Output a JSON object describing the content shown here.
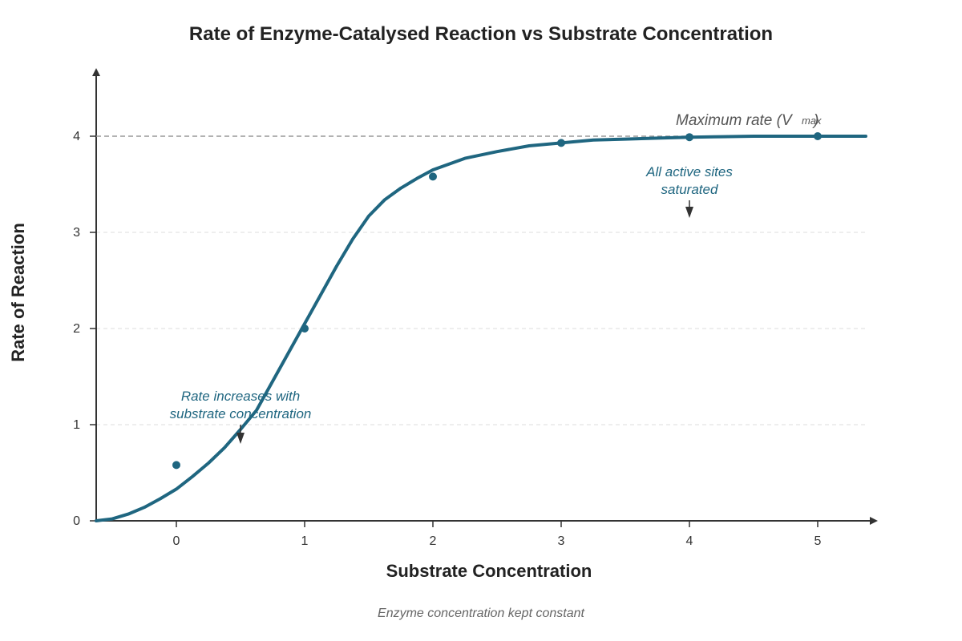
{
  "chart_data": {
    "type": "line",
    "title": "Rate of Enzyme-Catalysed Reaction vs Substrate Concentration",
    "xlabel": "Substrate Concentration",
    "ylabel": "Rate of Reaction",
    "xticks": [
      "0",
      "1",
      "2",
      "3",
      "4",
      "5"
    ],
    "yticks": [
      "0",
      "1",
      "2",
      "3",
      "4"
    ],
    "xlim": [
      -0.625,
      5.5
    ],
    "ylim": [
      0,
      4.7
    ],
    "grid": "horizontal dashed",
    "curve": {
      "x": [
        -0.625,
        -0.5,
        -0.375,
        -0.25,
        -0.125,
        0,
        0.125,
        0.25,
        0.375,
        0.5,
        0.625,
        0.75,
        0.875,
        1,
        1.125,
        1.25,
        1.375,
        1.5,
        1.625,
        1.75,
        1.875,
        2,
        2.25,
        2.5,
        2.75,
        3,
        3.25,
        3.5,
        3.75,
        4,
        4.25,
        4.5,
        4.75,
        5,
        5.25,
        5.375
      ],
      "y": [
        0,
        0.02,
        0.07,
        0.14,
        0.23,
        0.33,
        0.46,
        0.6,
        0.76,
        0.95,
        1.15,
        1.45,
        1.75,
        2.05,
        2.35,
        2.65,
        2.93,
        3.17,
        3.34,
        3.46,
        3.56,
        3.65,
        3.77,
        3.84,
        3.9,
        3.93,
        3.96,
        3.97,
        3.98,
        3.99,
        3.995,
        4.0,
        4.0,
        4.0,
        4.0,
        4.0
      ]
    },
    "points": {
      "x": [
        0,
        1,
        2,
        3,
        4,
        5
      ],
      "y": [
        0.58,
        2.0,
        3.58,
        3.93,
        3.99,
        4.0
      ]
    },
    "vmax": 4,
    "annotations": [
      {
        "text_lines": [
          "Rate increases with",
          "substrate concentration"
        ],
        "arrow_x": 0.5,
        "arrow_y": 0.8
      },
      {
        "text_lines": [
          "All active sites",
          "saturated"
        ],
        "arrow_x": 4.0,
        "arrow_y": 3.15
      }
    ],
    "vmax_label": {
      "text": "Maximum rate (V",
      "sub": "max",
      "close": ")"
    },
    "footnote": "Enzyme concentration kept constant",
    "colors": {
      "curve": "#1f6680",
      "annotation": "#1f6680",
      "axis": "#333333",
      "vmax_line": "#999999",
      "grid": "#dddddd"
    }
  }
}
